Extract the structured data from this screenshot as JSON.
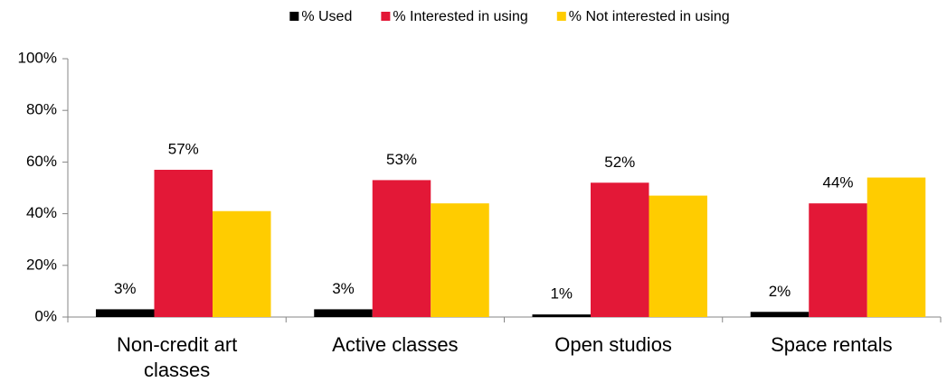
{
  "chart_data": {
    "type": "bar",
    "categories": [
      "Non-credit art classes",
      "Active classes",
      "Open studios",
      "Space rentals"
    ],
    "series": [
      {
        "name": "% Used",
        "color": "#000000",
        "values": [
          3,
          3,
          1,
          2
        ],
        "value_labels": [
          "3%",
          "3%",
          "1%",
          "2%"
        ]
      },
      {
        "name": "% Interested in using",
        "color": "#e31837",
        "values": [
          57,
          53,
          52,
          44
        ],
        "value_labels": [
          "57%",
          "53%",
          "52%",
          "44%"
        ]
      },
      {
        "name": "% Not interested in using",
        "color": "#ffcc00",
        "values": [
          41,
          44,
          47,
          54
        ]
      }
    ],
    "ylim": [
      0,
      100
    ],
    "yticks": [
      {
        "value": 0,
        "label": "0%"
      },
      {
        "value": 20,
        "label": "20%"
      },
      {
        "value": 40,
        "label": "40%"
      },
      {
        "value": 60,
        "label": "60%"
      },
      {
        "value": 80,
        "label": "80%"
      },
      {
        "value": 100,
        "label": "100%"
      }
    ],
    "legend": "top"
  }
}
